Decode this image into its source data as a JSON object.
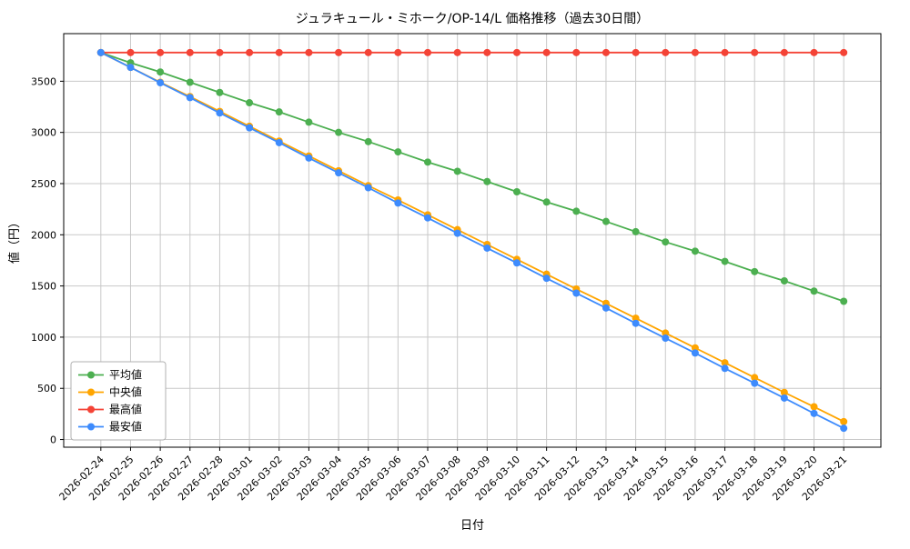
{
  "chart_data": {
    "type": "line",
    "title": "ジュラキュール・ミホーク/OP-14/L 価格推移（過去30日間）",
    "xlabel": "日付",
    "ylabel": "値（円）",
    "grid": true,
    "legend_position": "lower left",
    "ylim": [
      -75,
      3965
    ],
    "yticks": [
      0,
      500,
      1000,
      1500,
      2000,
      2500,
      3000,
      3500
    ],
    "x": [
      "2026-02-24",
      "2026-02-25",
      "2026-02-26",
      "2026-02-27",
      "2026-02-28",
      "2026-03-01",
      "2026-03-02",
      "2026-03-03",
      "2026-03-04",
      "2026-03-05",
      "2026-03-06",
      "2026-03-07",
      "2026-03-08",
      "2026-03-09",
      "2026-03-10",
      "2026-03-11",
      "2026-03-12",
      "2026-03-13",
      "2026-03-14",
      "2026-03-15",
      "2026-03-16",
      "2026-03-17",
      "2026-03-18",
      "2026-03-19",
      "2026-03-20",
      "2026-03-21"
    ],
    "series": [
      {
        "name": "平均値",
        "color": "#4caf50",
        "values": [
          3780,
          3680,
          3590,
          3490,
          3390,
          3290,
          3200,
          3100,
          3000,
          2910,
          2810,
          2710,
          2620,
          2520,
          2420,
          2320,
          2230,
          2130,
          2030,
          1930,
          1840,
          1740,
          1640,
          1550,
          1450,
          1350
        ]
      },
      {
        "name": "中央値",
        "color": "#ffa500",
        "values": [
          3780,
          3635,
          3490,
          3350,
          3205,
          3060,
          2915,
          2770,
          2625,
          2480,
          2340,
          2195,
          2050,
          1905,
          1760,
          1615,
          1470,
          1330,
          1185,
          1040,
          895,
          750,
          605,
          460,
          320,
          175
        ]
      },
      {
        "name": "最高値",
        "color": "#f44336",
        "values": [
          3780,
          3780,
          3780,
          3780,
          3780,
          3780,
          3780,
          3780,
          3780,
          3780,
          3780,
          3780,
          3780,
          3780,
          3780,
          3780,
          3780,
          3780,
          3780,
          3780,
          3780,
          3780,
          3780,
          3780,
          3780,
          3780
        ]
      },
      {
        "name": "最安値",
        "color": "#3d8bfd",
        "values": [
          3780,
          3635,
          3485,
          3340,
          3190,
          3045,
          2900,
          2750,
          2605,
          2460,
          2310,
          2165,
          2015,
          1870,
          1725,
          1575,
          1430,
          1285,
          1135,
          990,
          845,
          695,
          550,
          405,
          255,
          110
        ]
      }
    ],
    "style": {
      "grid_color": "#c8c8c8",
      "axis_color": "#000000",
      "legend_border_color": "#b0b0b0",
      "legend_bg_color": "#ffffff"
    }
  }
}
